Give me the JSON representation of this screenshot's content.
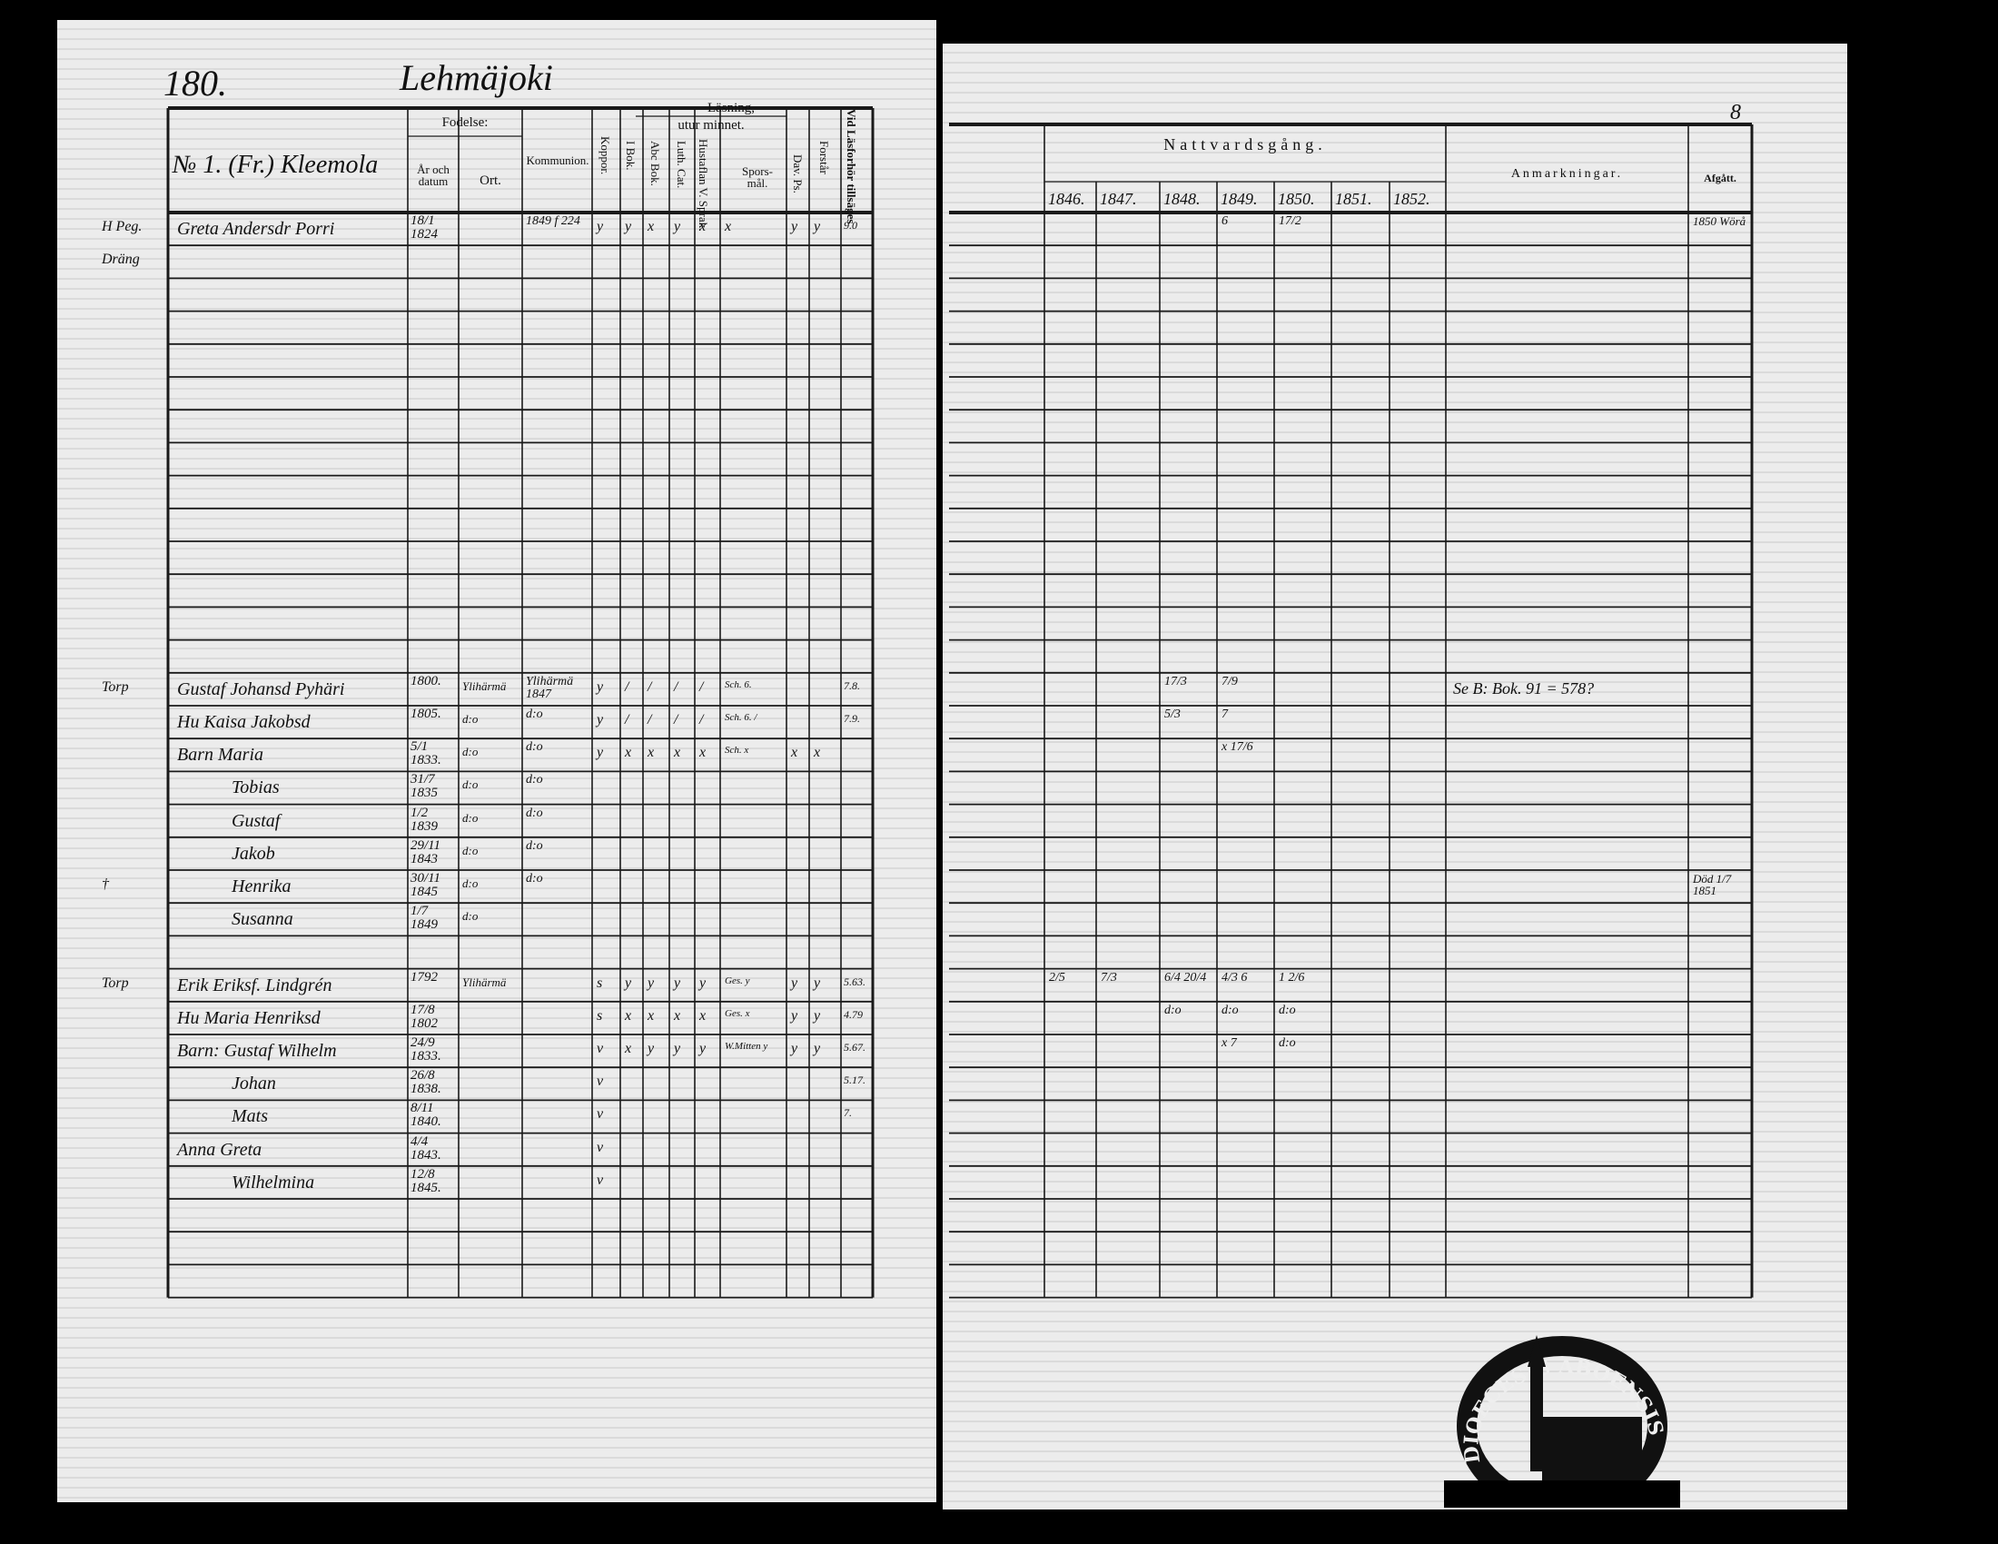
{
  "left_page": {
    "page_number": "180.",
    "parish": "Lehmäjoki",
    "household_title": "№ 1. (Fr.) Kleemola",
    "headers": {
      "fodelse": "Fodelse:",
      "ar_och_datum": "År och datum",
      "ort": "Ort.",
      "kommunion": "Kommunion.",
      "koppor": "Koppor.",
      "lasning": "Läsning,",
      "utur_minnet": "utur minnet.",
      "i_bok": "I Bok.",
      "abc_bok": "Abc Bok.",
      "luth_cat": "Luth. Cat.",
      "utvalda_sprak": "Hustaflan V. Sprak.",
      "sporsmal": "Spors-mål.",
      "dav_ps": "Dav. Ps.",
      "forstar": "Forstår",
      "vid_lasforhor": "Vid Läsforhör tillsäges"
    },
    "groups": [
      {
        "entries": [
          {
            "margin": "H Peg.",
            "name": "Greta Andersdr Porri",
            "birth": "18/1 1824",
            "ort": "",
            "komm": "1849 f 224",
            "marks": [
              "y",
              "y",
              "x",
              "y",
              "x",
              "x",
              "y",
              "y"
            ],
            "vid": "9.0"
          },
          {
            "margin": "Dräng",
            "name": "",
            "birth": "",
            "ort": "",
            "komm": "",
            "marks": [],
            "vid": ""
          }
        ]
      },
      {
        "entries": [
          {
            "margin": "Torp",
            "name": "Gustaf Johansd Pyhäri",
            "birth": "1800.",
            "ort": "Ylihärmä",
            "komm": "Ylihärmä 1847",
            "marks": [
              "y",
              "/",
              "/",
              "/",
              "/",
              "Sch. 6."
            ],
            "vid": "7.8."
          },
          {
            "margin": "",
            "name": "Hu Kaisa Jakobsd",
            "birth": "1805.",
            "ort": "d:o",
            "komm": "d:o",
            "marks": [
              "y",
              "/",
              "/",
              "/",
              "/",
              "Sch. 6. /"
            ],
            "vid": "7.9."
          },
          {
            "margin": "",
            "name": "Barn Maria",
            "birth": "5/1 1833.",
            "ort": "d:o",
            "komm": "d:o",
            "marks": [
              "y",
              "x",
              "x",
              "x",
              "x",
              "Sch. x",
              "x",
              "x"
            ],
            "vid": ""
          },
          {
            "margin": "",
            "name": "Tobias",
            "birth": "31/7 1835",
            "ort": "d:o",
            "komm": "d:o",
            "marks": [],
            "vid": ""
          },
          {
            "margin": "",
            "name": "Gustaf",
            "birth": "1/2 1839",
            "ort": "d:o",
            "komm": "d:o",
            "marks": [],
            "vid": ""
          },
          {
            "margin": "",
            "name": "Jakob",
            "birth": "29/11 1843",
            "ort": "d:o",
            "komm": "d:o",
            "marks": [],
            "vid": ""
          },
          {
            "margin": "†",
            "name": "Henrika",
            "birth": "30/11 1845",
            "ort": "d:o",
            "komm": "d:o",
            "marks": [],
            "vid": ""
          },
          {
            "margin": "",
            "name": "Susanna",
            "birth": "1/7 1849",
            "ort": "d:o",
            "komm": "",
            "marks": [],
            "vid": ""
          }
        ]
      },
      {
        "entries": [
          {
            "margin": "Torp",
            "name": "Erik Eriksf. Lindgrén",
            "birth": "1792",
            "ort": "Ylihärmä",
            "komm": "",
            "marks": [
              "s",
              "y",
              "y",
              "y",
              "y",
              "Ges. y",
              "y",
              "y"
            ],
            "vid": "5.63."
          },
          {
            "margin": "",
            "name": "Hu Maria Henriksd",
            "birth": "17/8 1802",
            "ort": "",
            "komm": "",
            "marks": [
              "s",
              "x",
              "x",
              "x",
              "x",
              "Ges. x",
              "y",
              "y"
            ],
            "vid": "4.79"
          },
          {
            "margin": "",
            "name": "Barn: Gustaf Wilhelm",
            "birth": "24/9 1833.",
            "ort": "",
            "komm": "",
            "marks": [
              "v",
              "x",
              "y",
              "y",
              "y",
              "W.Mitten y",
              "y",
              "y"
            ],
            "vid": "5.67."
          },
          {
            "margin": "",
            "name": "Johan",
            "birth": "26/8 1838.",
            "ort": "",
            "komm": "",
            "marks": [
              "v"
            ],
            "vid": "5.17."
          },
          {
            "margin": "",
            "name": "Mats",
            "birth": "8/11 1840.",
            "ort": "",
            "komm": "",
            "marks": [
              "v"
            ],
            "vid": "7."
          },
          {
            "margin": "",
            "name": "Anna Greta",
            "birth": "4/4 1843.",
            "ort": "",
            "komm": "",
            "marks": [
              "v"
            ],
            "vid": ""
          },
          {
            "margin": "",
            "name": "Wilhelmina",
            "birth": "12/8 1845.",
            "ort": "",
            "komm": "",
            "marks": [
              "v"
            ],
            "vid": ""
          }
        ]
      }
    ]
  },
  "right_page": {
    "page_number": "8",
    "nattvardsgang": "Nattvardsgång.",
    "years": [
      "1846.",
      "1847.",
      "1848.",
      "1849.",
      "1850.",
      "1851.",
      "1852."
    ],
    "anmarkningar": "Anmarkningar.",
    "afgatt": "Afgått.",
    "groups": [
      {
        "entries": [
          {
            "years": [
              "",
              "",
              "",
              "6",
              "17/2",
              "",
              ""
            ],
            "anm": "",
            "afgatt": "1850 Wörå"
          }
        ]
      },
      {
        "entries": [
          {
            "years": [
              "",
              "",
              "17/3",
              "7/9",
              "",
              "",
              ""
            ],
            "anm": "Se B: Bok. 91 = 578?",
            "afgatt": ""
          },
          {
            "years": [
              "",
              "",
              "5/3",
              "7",
              "",
              "",
              ""
            ],
            "anm": "",
            "afgatt": ""
          },
          {
            "years": [
              "",
              "",
              "",
              "x 17/6",
              "",
              "",
              ""
            ],
            "anm": "",
            "afgatt": ""
          },
          {
            "years": [
              "",
              "",
              "",
              "",
              "",
              "",
              ""
            ],
            "anm": "",
            "afgatt": ""
          },
          {
            "years": [
              "",
              "",
              "",
              "",
              "",
              "",
              ""
            ],
            "anm": "",
            "afgatt": ""
          },
          {
            "years": [
              "",
              "",
              "",
              "",
              "",
              "",
              ""
            ],
            "anm": "",
            "afgatt": ""
          },
          {
            "years": [
              "",
              "",
              "",
              "",
              "",
              "",
              ""
            ],
            "anm": "",
            "afgatt": "Död 1/7 1851"
          }
        ]
      },
      {
        "entries": [
          {
            "years": [
              "2/5",
              "7/3",
              "6/4 20/4",
              "4/3 6",
              "1 2/6",
              "",
              ""
            ],
            "anm": "",
            "afgatt": ""
          },
          {
            "years": [
              "",
              "",
              "d:o",
              "d:o",
              "d:o",
              "",
              ""
            ],
            "anm": "",
            "afgatt": ""
          },
          {
            "years": [
              "",
              "",
              "",
              "x 7",
              "d:o",
              "",
              ""
            ],
            "anm": "",
            "afgatt": ""
          }
        ]
      }
    ]
  },
  "stamp": {
    "text": "DIOECESIS ABOENSIS · INT ·"
  },
  "colors": {
    "background": "#000000",
    "paper": "#ececec",
    "ink": "#111111"
  }
}
